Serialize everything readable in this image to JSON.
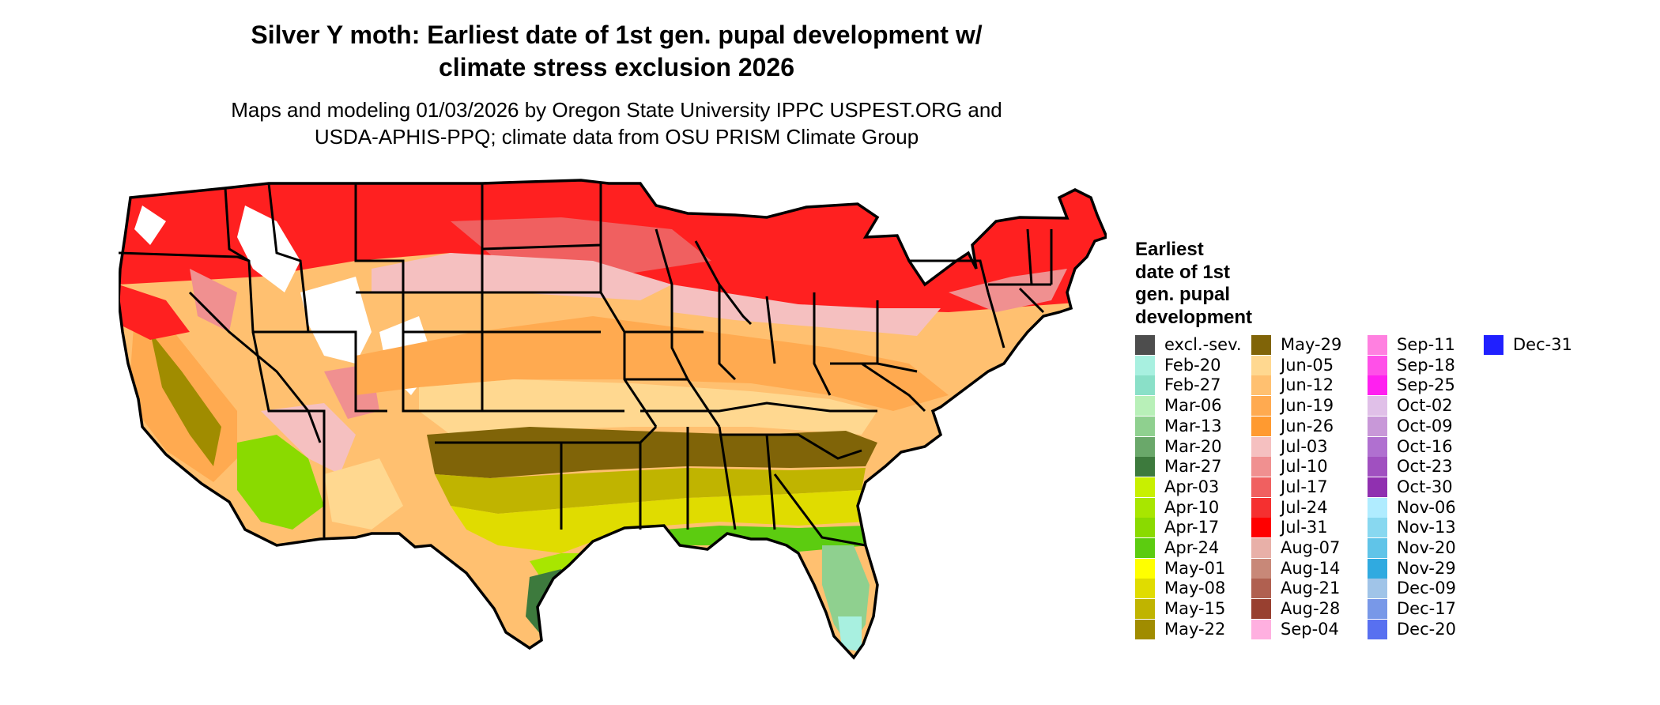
{
  "title_line1": "Silver Y moth: Earliest date of 1st gen. pupal development w/",
  "title_line2": "climate stress exclusion 2026",
  "subtitle_line1": "Maps and modeling 01/03/2026 by Oregon State University IPPC USPEST.ORG and",
  "subtitle_line2": "USDA-APHIS-PPQ; climate data from OSU PRISM Climate Group",
  "legend": {
    "title_lines": [
      "Earliest",
      "date of 1st",
      "gen. pupal",
      "development"
    ],
    "columns": [
      [
        {
          "label": "excl.-sev.",
          "color": "#4d4d4d"
        },
        {
          "label": "Feb-20",
          "color": "#a8f0e0"
        },
        {
          "label": "Feb-27",
          "color": "#8ae0c8"
        },
        {
          "label": "Mar-06",
          "color": "#b8f0b8"
        },
        {
          "label": "Mar-13",
          "color": "#8fd08f"
        },
        {
          "label": "Mar-20",
          "color": "#6aa86a"
        },
        {
          "label": "Mar-27",
          "color": "#3d7a3d"
        },
        {
          "label": "Apr-03",
          "color": "#c8f000"
        },
        {
          "label": "Apr-10",
          "color": "#a8e600"
        },
        {
          "label": "Apr-17",
          "color": "#8ada00"
        },
        {
          "label": "Apr-24",
          "color": "#5ccc10"
        },
        {
          "label": "May-01",
          "color": "#ffff00"
        },
        {
          "label": "May-08",
          "color": "#e0dc00"
        },
        {
          "label": "May-15",
          "color": "#c0b400"
        },
        {
          "label": "May-22",
          "color": "#a08c00"
        }
      ],
      [
        {
          "label": "May-29",
          "color": "#806408"
        },
        {
          "label": "Jun-05",
          "color": "#ffd890"
        },
        {
          "label": "Jun-12",
          "color": "#ffc070"
        },
        {
          "label": "Jun-19",
          "color": "#ffaa50"
        },
        {
          "label": "Jun-26",
          "color": "#ff9a30"
        },
        {
          "label": "Jul-03",
          "color": "#f5c0c0"
        },
        {
          "label": "Jul-10",
          "color": "#f09090"
        },
        {
          "label": "Jul-17",
          "color": "#f06060"
        },
        {
          "label": "Jul-24",
          "color": "#f53030"
        },
        {
          "label": "Jul-31",
          "color": "#ff0000"
        },
        {
          "label": "Aug-07",
          "color": "#e8b0a8"
        },
        {
          "label": "Aug-14",
          "color": "#c88878"
        },
        {
          "label": "Aug-21",
          "color": "#b06050"
        },
        {
          "label": "Aug-28",
          "color": "#984030"
        },
        {
          "label": "Sep-04",
          "color": "#ffb0e0"
        }
      ],
      [
        {
          "label": "Sep-11",
          "color": "#ff80e0"
        },
        {
          "label": "Sep-18",
          "color": "#ff50e8"
        },
        {
          "label": "Sep-25",
          "color": "#ff20f0"
        },
        {
          "label": "Oct-02",
          "color": "#e0c0e8"
        },
        {
          "label": "Oct-09",
          "color": "#c898d8"
        },
        {
          "label": "Oct-16",
          "color": "#b070d0"
        },
        {
          "label": "Oct-23",
          "color": "#a050c0"
        },
        {
          "label": "Oct-30",
          "color": "#9030b0"
        },
        {
          "label": "Nov-06",
          "color": "#b0ecff"
        },
        {
          "label": "Nov-13",
          "color": "#88d8f0"
        },
        {
          "label": "Nov-20",
          "color": "#60c4e8"
        },
        {
          "label": "Nov-29",
          "color": "#30aae0"
        },
        {
          "label": "Dec-09",
          "color": "#a0c4e8"
        },
        {
          "label": "Dec-17",
          "color": "#7898e8"
        },
        {
          "label": "Dec-20",
          "color": "#5870f0"
        }
      ],
      [
        {
          "label": "Dec-31",
          "color": "#2020ff"
        }
      ]
    ]
  }
}
